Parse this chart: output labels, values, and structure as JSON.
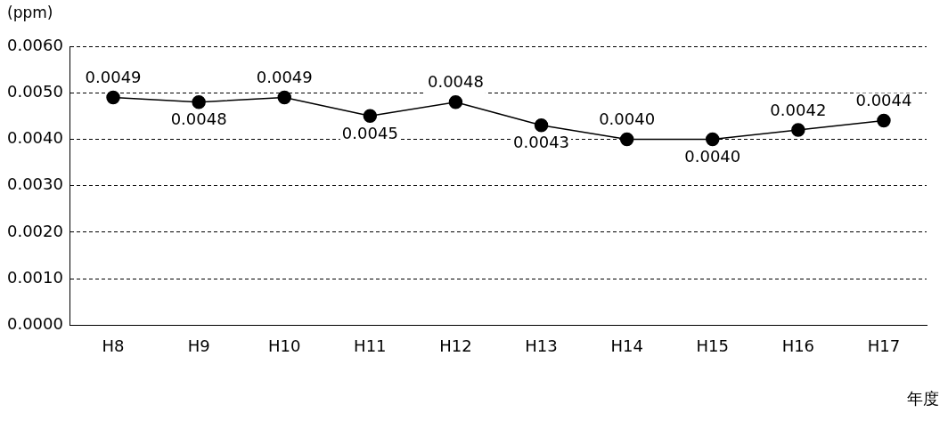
{
  "chart_data": {
    "type": "line",
    "ylabel": "(ppm)",
    "xlabel": "年度",
    "categories": [
      "H8",
      "H9",
      "H10",
      "H11",
      "H12",
      "H13",
      "H14",
      "H15",
      "H16",
      "H17"
    ],
    "series": [
      {
        "color": "#000000",
        "values": [
          0.0049,
          0.0048,
          0.0049,
          0.0045,
          0.0048,
          0.0043,
          0.004,
          0.004,
          0.0042,
          0.0044
        ],
        "value_labels": [
          "0.0049",
          "0.0048",
          "0.0049",
          "0.0045",
          "0.0048",
          "0.0043",
          "0.0040",
          "0.0040",
          "0.0042",
          "0.0044"
        ]
      }
    ],
    "ylim": [
      0,
      0.006
    ],
    "yticks": [
      {
        "value": 0,
        "label": "0.0000"
      },
      {
        "value": 0.001,
        "label": "0.0010"
      },
      {
        "value": 0.002,
        "label": "0.0020"
      },
      {
        "value": 0.003,
        "label": "0.0030"
      },
      {
        "value": 0.004,
        "label": "0.0040"
      },
      {
        "value": 0.005,
        "label": "0.0050"
      },
      {
        "value": 0.006,
        "label": "0.0060"
      }
    ],
    "grid": "y",
    "legend": false,
    "marker": "circle",
    "line_style": "solid"
  }
}
